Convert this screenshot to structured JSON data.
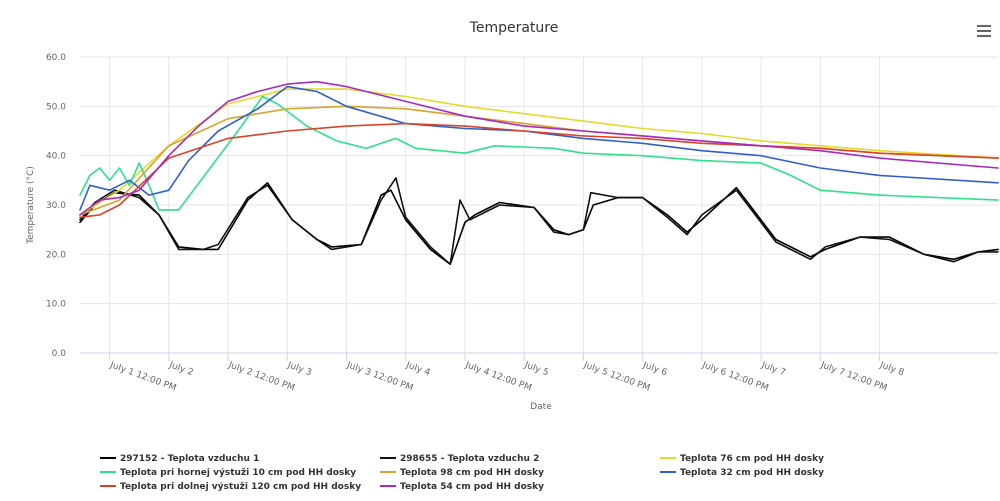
{
  "chart_data": {
    "type": "line",
    "title": "Temperature",
    "xlabel": "Date",
    "ylabel": "Temperature (°C)",
    "ylim": [
      0,
      60
    ],
    "xlim": [
      "2021-07-01T06:00",
      "2021-07-09T00:00"
    ],
    "yticks": [
      "0.0",
      "10.0",
      "20.0",
      "30.0",
      "40.0",
      "50.0",
      "60.0"
    ],
    "xticks": [
      {
        "t": "2021-07-01T12:00",
        "label": "July 1 12:00 PM"
      },
      {
        "t": "2021-07-02T00:00",
        "label": "July 2"
      },
      {
        "t": "2021-07-02T12:00",
        "label": "July 2 12:00 PM"
      },
      {
        "t": "2021-07-03T00:00",
        "label": "July 3"
      },
      {
        "t": "2021-07-03T12:00",
        "label": "July 3 12:00 PM"
      },
      {
        "t": "2021-07-04T00:00",
        "label": "July 4"
      },
      {
        "t": "2021-07-04T12:00",
        "label": "July 4 12:00 PM"
      },
      {
        "t": "2021-07-05T00:00",
        "label": "July 5"
      },
      {
        "t": "2021-07-05T12:00",
        "label": "July 5 12:00 PM"
      },
      {
        "t": "2021-07-06T00:00",
        "label": "July 6"
      },
      {
        "t": "2021-07-06T12:00",
        "label": "July 6 12:00 PM"
      },
      {
        "t": "2021-07-07T00:00",
        "label": "July 7"
      },
      {
        "t": "2021-07-07T12:00",
        "label": "July 7 12:00 PM"
      },
      {
        "t": "2021-07-08T00:00",
        "label": "July 8"
      }
    ],
    "grid": true,
    "legend": "bottom",
    "menu_icon": "hamburger-menu-icon",
    "series": [
      {
        "name": "297152 - Teplota vzduchu 1",
        "color": "#000000",
        "points": [
          [
            "2021-07-01T06:00",
            26.5
          ],
          [
            "2021-07-01T09:00",
            30
          ],
          [
            "2021-07-01T13:00",
            32.5
          ],
          [
            "2021-07-01T18:00",
            32
          ],
          [
            "2021-07-01T22:00",
            28
          ],
          [
            "2021-07-02T02:00",
            21.5
          ],
          [
            "2021-07-02T07:00",
            21
          ],
          [
            "2021-07-02T10:00",
            21
          ],
          [
            "2021-07-02T16:00",
            31
          ],
          [
            "2021-07-02T20:00",
            34.5
          ],
          [
            "2021-07-03T01:00",
            27
          ],
          [
            "2021-07-03T06:00",
            23
          ],
          [
            "2021-07-03T09:00",
            21.5
          ],
          [
            "2021-07-03T15:00",
            22
          ],
          [
            "2021-07-03T19:00",
            32
          ],
          [
            "2021-07-03T21:00",
            33
          ],
          [
            "2021-07-04T00:00",
            27
          ],
          [
            "2021-07-04T05:00",
            21
          ],
          [
            "2021-07-04T09:00",
            18
          ],
          [
            "2021-07-04T12:00",
            26.5
          ],
          [
            "2021-07-04T14:00",
            28
          ],
          [
            "2021-07-04T19:00",
            30.5
          ],
          [
            "2021-07-05T02:00",
            29.5
          ],
          [
            "2021-07-05T06:00",
            25
          ],
          [
            "2021-07-05T09:00",
            24
          ],
          [
            "2021-07-05T12:00",
            25
          ],
          [
            "2021-07-05T14:00",
            30
          ],
          [
            "2021-07-05T19:00",
            31.5
          ],
          [
            "2021-07-06T00:00",
            31.5
          ],
          [
            "2021-07-06T05:00",
            28
          ],
          [
            "2021-07-06T09:00",
            24.5
          ],
          [
            "2021-07-06T12:00",
            27
          ],
          [
            "2021-07-06T19:00",
            33.5
          ],
          [
            "2021-07-07T03:00",
            23
          ],
          [
            "2021-07-07T10:00",
            19.5
          ],
          [
            "2021-07-07T13:00",
            21
          ],
          [
            "2021-07-07T20:00",
            23.5
          ],
          [
            "2021-07-08T02:00",
            23.5
          ],
          [
            "2021-07-08T09:00",
            20
          ],
          [
            "2021-07-08T15:00",
            19
          ],
          [
            "2021-07-08T20:00",
            20.5
          ],
          [
            "2021-07-09T00:00",
            21
          ]
        ]
      },
      {
        "name": "298655 - Teplota vzduchu 2",
        "color": "#111111",
        "points": [
          [
            "2021-07-01T06:00",
            27
          ],
          [
            "2021-07-01T09:00",
            30.5
          ],
          [
            "2021-07-01T13:00",
            33
          ],
          [
            "2021-07-01T18:00",
            31.5
          ],
          [
            "2021-07-01T22:00",
            28
          ],
          [
            "2021-07-02T02:00",
            21
          ],
          [
            "2021-07-02T07:00",
            21
          ],
          [
            "2021-07-02T10:00",
            22
          ],
          [
            "2021-07-02T16:00",
            31.5
          ],
          [
            "2021-07-02T20:00",
            34
          ],
          [
            "2021-07-03T01:00",
            27
          ],
          [
            "2021-07-03T06:00",
            23
          ],
          [
            "2021-07-03T09:00",
            21
          ],
          [
            "2021-07-03T15:00",
            22
          ],
          [
            "2021-07-03T19:00",
            31
          ],
          [
            "2021-07-03T22:00",
            35.5
          ],
          [
            "2021-07-04T00:00",
            27.5
          ],
          [
            "2021-07-04T05:00",
            21.5
          ],
          [
            "2021-07-04T09:00",
            18
          ],
          [
            "2021-07-04T11:00",
            31
          ],
          [
            "2021-07-04T13:00",
            27
          ],
          [
            "2021-07-04T19:00",
            30
          ],
          [
            "2021-07-05T02:00",
            29.5
          ],
          [
            "2021-07-05T06:00",
            24.5
          ],
          [
            "2021-07-05T09:00",
            24
          ],
          [
            "2021-07-05T12:00",
            25
          ],
          [
            "2021-07-05T13:30",
            32.5
          ],
          [
            "2021-07-05T19:00",
            31.5
          ],
          [
            "2021-07-06T00:00",
            31.5
          ],
          [
            "2021-07-06T05:00",
            27.5
          ],
          [
            "2021-07-06T09:00",
            24
          ],
          [
            "2021-07-06T12:00",
            28
          ],
          [
            "2021-07-06T19:00",
            33
          ],
          [
            "2021-07-07T03:00",
            22.5
          ],
          [
            "2021-07-07T10:00",
            19
          ],
          [
            "2021-07-07T13:00",
            21.5
          ],
          [
            "2021-07-07T20:00",
            23.5
          ],
          [
            "2021-07-08T02:00",
            23
          ],
          [
            "2021-07-08T09:00",
            20
          ],
          [
            "2021-07-08T15:00",
            18.5
          ],
          [
            "2021-07-08T20:00",
            20.5
          ],
          [
            "2021-07-09T00:00",
            20.5
          ]
        ]
      },
      {
        "name": "Teplota 76 cm pod HH dosky",
        "color": "#e5d92c",
        "points": [
          [
            "2021-07-01T06:00",
            28
          ],
          [
            "2021-07-01T14:00",
            33
          ],
          [
            "2021-07-02T00:00",
            42
          ],
          [
            "2021-07-02T12:00",
            50.5
          ],
          [
            "2021-07-03T00:00",
            53.5
          ],
          [
            "2021-07-03T12:00",
            53.5
          ],
          [
            "2021-07-04T00:00",
            52
          ],
          [
            "2021-07-04T12:00",
            50
          ],
          [
            "2021-07-05T00:00",
            48.5
          ],
          [
            "2021-07-05T12:00",
            47
          ],
          [
            "2021-07-06T00:00",
            45.5
          ],
          [
            "2021-07-06T12:00",
            44.5
          ],
          [
            "2021-07-07T00:00",
            43
          ],
          [
            "2021-07-07T12:00",
            42
          ],
          [
            "2021-07-08T00:00",
            41
          ],
          [
            "2021-07-09T00:00",
            39.5
          ]
        ]
      },
      {
        "name": "Teplota pri hornej výstuži 10 cm pod HH dosky",
        "color": "#2ee089",
        "points": [
          [
            "2021-07-01T06:00",
            32
          ],
          [
            "2021-07-01T08:00",
            36
          ],
          [
            "2021-07-01T10:00",
            37.5
          ],
          [
            "2021-07-01T12:00",
            35
          ],
          [
            "2021-07-01T14:00",
            37.5
          ],
          [
            "2021-07-01T16:00",
            34
          ],
          [
            "2021-07-01T18:00",
            38.5
          ],
          [
            "2021-07-01T20:00",
            34
          ],
          [
            "2021-07-01T22:00",
            29
          ],
          [
            "2021-07-02T02:00",
            29
          ],
          [
            "2021-07-02T08:00",
            37
          ],
          [
            "2021-07-02T14:00",
            45
          ],
          [
            "2021-07-02T19:00",
            52
          ],
          [
            "2021-07-02T22:00",
            50.5
          ],
          [
            "2021-07-03T04:00",
            46
          ],
          [
            "2021-07-03T10:00",
            43
          ],
          [
            "2021-07-03T16:00",
            41.5
          ],
          [
            "2021-07-03T22:00",
            43.5
          ],
          [
            "2021-07-04T02:00",
            41.5
          ],
          [
            "2021-07-04T12:00",
            40.5
          ],
          [
            "2021-07-04T18:00",
            42
          ],
          [
            "2021-07-05T06:00",
            41.5
          ],
          [
            "2021-07-05T12:00",
            40.5
          ],
          [
            "2021-07-06T00:00",
            40
          ],
          [
            "2021-07-06T12:00",
            39
          ],
          [
            "2021-07-07T00:00",
            38.5
          ],
          [
            "2021-07-07T06:00",
            36
          ],
          [
            "2021-07-07T12:00",
            33
          ],
          [
            "2021-07-08T00:00",
            32
          ],
          [
            "2021-07-09T00:00",
            31
          ]
        ]
      },
      {
        "name": "Teplota 98 cm pod HH dosky",
        "color": "#d9a22b",
        "points": [
          [
            "2021-07-01T06:00",
            28
          ],
          [
            "2021-07-01T14:00",
            31
          ],
          [
            "2021-07-02T00:00",
            42
          ],
          [
            "2021-07-02T12:00",
            47.5
          ],
          [
            "2021-07-03T00:00",
            49.5
          ],
          [
            "2021-07-03T12:00",
            50
          ],
          [
            "2021-07-04T00:00",
            49.5
          ],
          [
            "2021-07-04T12:00",
            48
          ],
          [
            "2021-07-05T00:00",
            46.5
          ],
          [
            "2021-07-05T12:00",
            45
          ],
          [
            "2021-07-06T00:00",
            44
          ],
          [
            "2021-07-06T12:00",
            43
          ],
          [
            "2021-07-07T00:00",
            42
          ],
          [
            "2021-07-07T12:00",
            41.5
          ],
          [
            "2021-07-08T00:00",
            40.5
          ],
          [
            "2021-07-09T00:00",
            39.5
          ]
        ]
      },
      {
        "name": "Teplota 32 cm pod HH dosky",
        "color": "#2f5fce",
        "points": [
          [
            "2021-07-01T06:00",
            29
          ],
          [
            "2021-07-01T08:00",
            34
          ],
          [
            "2021-07-01T12:00",
            33
          ],
          [
            "2021-07-01T16:00",
            35
          ],
          [
            "2021-07-01T20:00",
            32
          ],
          [
            "2021-07-02T00:00",
            33
          ],
          [
            "2021-07-02T04:00",
            39
          ],
          [
            "2021-07-02T10:00",
            45
          ],
          [
            "2021-07-02T18:00",
            49.5
          ],
          [
            "2021-07-03T00:00",
            54
          ],
          [
            "2021-07-03T06:00",
            53
          ],
          [
            "2021-07-03T12:00",
            50
          ],
          [
            "2021-07-04T00:00",
            46.5
          ],
          [
            "2021-07-04T12:00",
            45.5
          ],
          [
            "2021-07-05T00:00",
            45
          ],
          [
            "2021-07-05T12:00",
            43.5
          ],
          [
            "2021-07-06T00:00",
            42.5
          ],
          [
            "2021-07-06T12:00",
            41
          ],
          [
            "2021-07-07T00:00",
            40
          ],
          [
            "2021-07-07T12:00",
            37.5
          ],
          [
            "2021-07-08T00:00",
            36
          ],
          [
            "2021-07-09T00:00",
            34.5
          ]
        ]
      },
      {
        "name": "Teplota pri dolnej výstuži 120 cm pod HH dosky",
        "color": "#d9442a",
        "points": [
          [
            "2021-07-01T06:00",
            27.5
          ],
          [
            "2021-07-01T10:00",
            28
          ],
          [
            "2021-07-01T14:00",
            30
          ],
          [
            "2021-07-02T00:00",
            39.5
          ],
          [
            "2021-07-02T12:00",
            43.5
          ],
          [
            "2021-07-03T00:00",
            45
          ],
          [
            "2021-07-03T12:00",
            46
          ],
          [
            "2021-07-04T00:00",
            46.5
          ],
          [
            "2021-07-04T12:00",
            46
          ],
          [
            "2021-07-05T00:00",
            45
          ],
          [
            "2021-07-05T12:00",
            44
          ],
          [
            "2021-07-06T00:00",
            43.5
          ],
          [
            "2021-07-06T12:00",
            42.5
          ],
          [
            "2021-07-07T00:00",
            42
          ],
          [
            "2021-07-07T12:00",
            41.5
          ],
          [
            "2021-07-08T00:00",
            40.5
          ],
          [
            "2021-07-09T00:00",
            39.5
          ]
        ]
      },
      {
        "name": "Teplota 54 cm pod HH dosky",
        "color": "#a52bc4",
        "points": [
          [
            "2021-07-01T06:00",
            28
          ],
          [
            "2021-07-01T10:00",
            31
          ],
          [
            "2021-07-01T14:00",
            31.5
          ],
          [
            "2021-07-01T18:00",
            33
          ],
          [
            "2021-07-02T00:00",
            40
          ],
          [
            "2021-07-02T06:00",
            46
          ],
          [
            "2021-07-02T12:00",
            51
          ],
          [
            "2021-07-02T18:00",
            53
          ],
          [
            "2021-07-03T00:00",
            54.5
          ],
          [
            "2021-07-03T06:00",
            55
          ],
          [
            "2021-07-03T12:00",
            54
          ],
          [
            "2021-07-04T00:00",
            51
          ],
          [
            "2021-07-04T12:00",
            48
          ],
          [
            "2021-07-05T00:00",
            46
          ],
          [
            "2021-07-05T12:00",
            45
          ],
          [
            "2021-07-06T00:00",
            44
          ],
          [
            "2021-07-06T12:00",
            43
          ],
          [
            "2021-07-07T00:00",
            42
          ],
          [
            "2021-07-07T12:00",
            41
          ],
          [
            "2021-07-08T00:00",
            39.5
          ],
          [
            "2021-07-09T00:00",
            37.5
          ]
        ]
      }
    ]
  }
}
